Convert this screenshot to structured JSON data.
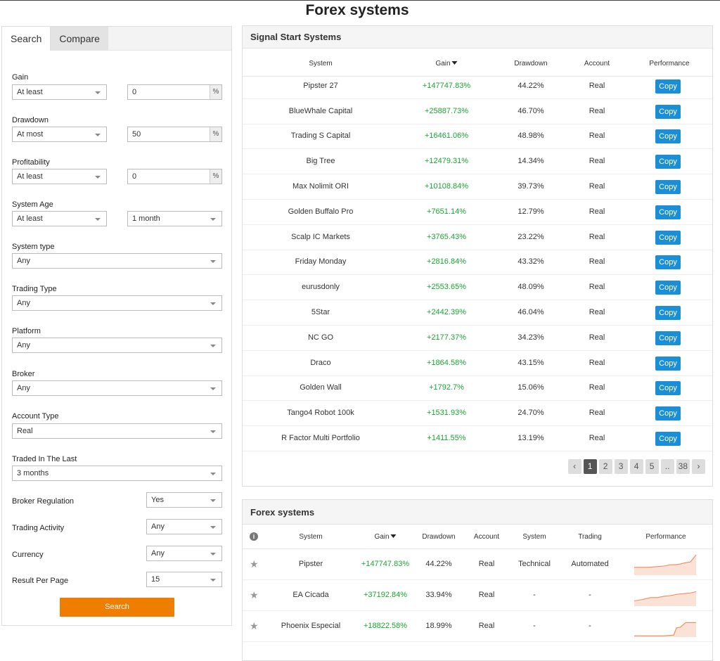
{
  "page": {
    "title": "Forex systems"
  },
  "tabs": [
    "Search",
    "Compare"
  ],
  "filters": {
    "gain": {
      "label": "Gain",
      "op": "At least",
      "value": "0",
      "unit": "%"
    },
    "drawdown": {
      "label": "Drawdown",
      "op": "At most",
      "value": "50",
      "unit": "%"
    },
    "profitability": {
      "label": "Profitability",
      "op": "At least",
      "value": "0",
      "unit": "%"
    },
    "system_age": {
      "label": "System Age",
      "op": "At least",
      "value": "1 month"
    },
    "system_type": {
      "label": "System type",
      "value": "Any"
    },
    "trading_type": {
      "label": "Trading Type",
      "value": "Any"
    },
    "platform": {
      "label": "Platform",
      "value": "Any"
    },
    "broker": {
      "label": "Broker",
      "value": "Any"
    },
    "account_type": {
      "label": "Account Type",
      "value": "Real"
    },
    "traded_in_last": {
      "label": "Traded In The Last",
      "value": "3 months"
    },
    "broker_regulation": {
      "label": "Broker Regulation",
      "value": "Yes"
    },
    "trading_activity": {
      "label": "Trading Activity",
      "value": "Any"
    },
    "currency": {
      "label": "Currency",
      "value": "Any"
    },
    "result_per_page": {
      "label": "Result Per Page",
      "value": "15"
    },
    "search_button": "Search"
  },
  "signal": {
    "title": "Signal Start Systems",
    "headers": {
      "system": "System",
      "gain": "Gain",
      "drawdown": "Drawdown",
      "account": "Account",
      "performance": "Performance"
    },
    "copy_label": "Copy",
    "rows": [
      {
        "system": "Pipster 27",
        "gain": "+147747.83%",
        "drawdown": "44.22%",
        "account": "Real"
      },
      {
        "system": "BlueWhale Capital",
        "gain": "+25887.73%",
        "drawdown": "46.70%",
        "account": "Real"
      },
      {
        "system": "Trading S Capital",
        "gain": "+16461.06%",
        "drawdown": "48.98%",
        "account": "Real"
      },
      {
        "system": "Big Tree",
        "gain": "+12479.31%",
        "drawdown": "14.34%",
        "account": "Real"
      },
      {
        "system": "Max Nolimit ORI",
        "gain": "+10108.84%",
        "drawdown": "39.73%",
        "account": "Real"
      },
      {
        "system": "Golden Buffalo Pro",
        "gain": "+7651.14%",
        "drawdown": "12.79%",
        "account": "Real"
      },
      {
        "system": "Scalp IC Markets",
        "gain": "+3765.43%",
        "drawdown": "23.22%",
        "account": "Real"
      },
      {
        "system": "Friday Monday",
        "gain": "+2816.84%",
        "drawdown": "43.32%",
        "account": "Real"
      },
      {
        "system": "eurusdonly",
        "gain": "+2553.65%",
        "drawdown": "48.09%",
        "account": "Real"
      },
      {
        "system": "5Star",
        "gain": "+2442.39%",
        "drawdown": "46.04%",
        "account": "Real"
      },
      {
        "system": "NC GO",
        "gain": "+2177.37%",
        "drawdown": "34.23%",
        "account": "Real"
      },
      {
        "system": "Draco",
        "gain": "+1864.58%",
        "drawdown": "43.15%",
        "account": "Real"
      },
      {
        "system": "Golden Wall",
        "gain": "+1792.7%",
        "drawdown": "15.06%",
        "account": "Real"
      },
      {
        "system": "Tango4 Robot 100k",
        "gain": "+1531.93%",
        "drawdown": "24.70%",
        "account": "Real"
      },
      {
        "system": "R Factor Multi Portfolio",
        "gain": "+1411.55%",
        "drawdown": "13.19%",
        "account": "Real"
      }
    ],
    "pagination": {
      "prev": "‹",
      "pages": [
        "1",
        "2",
        "3",
        "4",
        "5"
      ],
      "ellipsis": "..",
      "last": "38",
      "next": "›",
      "current": "1"
    }
  },
  "forex": {
    "title": "Forex systems",
    "headers": {
      "system": "System",
      "gain": "Gain",
      "drawdown": "Drawdown",
      "account": "Account",
      "system_type": "System",
      "trading": "Trading",
      "performance": "Performance"
    },
    "rows": [
      {
        "system": "Pipster",
        "gain": "+147747.83%",
        "drawdown": "44.22%",
        "account": "Real",
        "system_type": "Technical",
        "trading": "Automated"
      },
      {
        "system": "EA Cicada",
        "gain": "+37192.84%",
        "drawdown": "33.94%",
        "account": "Real",
        "system_type": "-",
        "trading": "-"
      },
      {
        "system": "Phoenix Especial",
        "gain": "+18822.58%",
        "drawdown": "18.99%",
        "account": "Real",
        "system_type": "-",
        "trading": "-"
      }
    ],
    "sparkline_color": "#f08a5d"
  }
}
